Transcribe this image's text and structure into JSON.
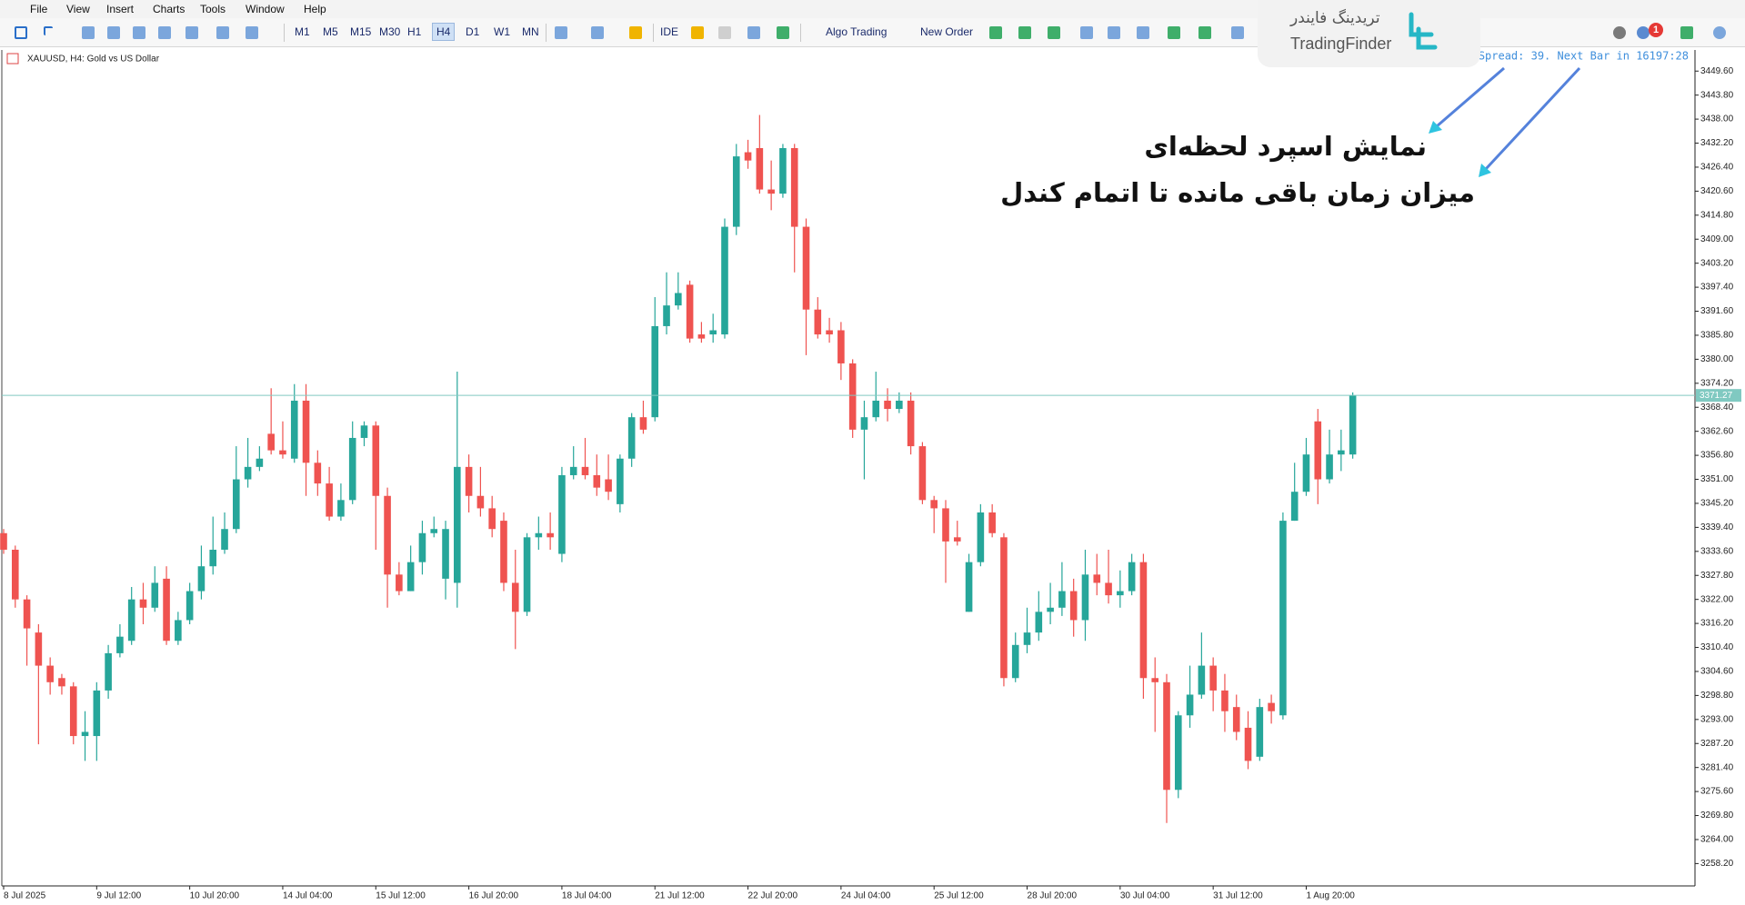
{
  "menu": [
    "File",
    "View",
    "Insert",
    "Charts",
    "Tools",
    "Window",
    "Help"
  ],
  "toolbar": {
    "timeframes": [
      "M1",
      "M5",
      "M15",
      "M30",
      "H1",
      "H4",
      "D1",
      "W1",
      "MN"
    ],
    "active": "H4",
    "buttons": [
      "IDE",
      "Algo Trading",
      "New Order"
    ],
    "notification_count": 1
  },
  "watermark": {
    "persian": "تریدینگ فایندر",
    "latin": "TradingFinder"
  },
  "annotations": [
    "نمایش اسپرد لحظه‌ای",
    "میزان زمان باقی مانده تا اتمام کندل"
  ],
  "chart_data": {
    "type": "candlestick",
    "title": "XAUUSD, H4:  Gold vs US Dollar",
    "info": "Spread: 39. Next Bar in 16197:28",
    "up_color": "#26a69a",
    "down_color": "#ef5350",
    "price_line_color": "#80c9c1",
    "grid": false,
    "categories": [
      "8 Jul 2025",
      null,
      null,
      null,
      null,
      null,
      null,
      null,
      "9 Jul 12:00",
      null,
      null,
      null,
      null,
      null,
      null,
      null,
      "10 Jul 20:00",
      null,
      null,
      null,
      null,
      null,
      null,
      null,
      "14 Jul 04:00",
      null,
      null,
      null,
      null,
      null,
      null,
      null,
      "15 Jul 12:00",
      null,
      null,
      null,
      null,
      null,
      null,
      null,
      "16 Jul 20:00",
      null,
      null,
      null,
      null,
      null,
      null,
      null,
      "18 Jul 04:00",
      null,
      null,
      null,
      null,
      null,
      null,
      null,
      "21 Jul 12:00",
      null,
      null,
      null,
      null,
      null,
      null,
      null,
      "22 Jul 20:00",
      null,
      null,
      null,
      null,
      null,
      null,
      null,
      "24 Jul 04:00",
      null,
      null,
      null,
      null,
      null,
      null,
      null,
      "25 Jul 12:00",
      null,
      null,
      null,
      null,
      null,
      null,
      null,
      "28 Jul 20:00",
      null,
      null,
      null,
      null,
      null,
      null,
      null,
      "30 Jul 04:00",
      null,
      null,
      null,
      null,
      null,
      null,
      null,
      "31 Jul 12:00",
      null,
      null,
      null,
      null,
      null,
      null,
      null,
      "1 Aug 20:00",
      null,
      null,
      null,
      null
    ],
    "open": [
      3338,
      3334,
      3322,
      3314,
      3306,
      3303,
      3301,
      3289,
      3289,
      3300,
      3309,
      3312,
      3322,
      3320,
      3327,
      3312,
      3317,
      3324,
      3330,
      3334,
      3339,
      3351,
      3354,
      3362,
      3358,
      3356,
      3370,
      3355,
      3350,
      3342,
      3346,
      3361,
      3364,
      3347,
      3328,
      3324,
      3331,
      3338,
      3327,
      3326,
      3354,
      3347,
      3344,
      3341,
      3326,
      3319,
      3337,
      3338,
      3333,
      3352,
      3354,
      3352,
      3351,
      3345,
      3356,
      3366,
      3366,
      3388,
      3393,
      3398,
      3386,
      3386,
      3386,
      3412,
      3430,
      3431,
      3421,
      3420,
      3431,
      3412,
      3392,
      3387,
      3387,
      3379,
      3363,
      3366,
      3370,
      3368,
      3370,
      3359,
      3346,
      3344,
      3337,
      3319,
      3331,
      3343,
      3337,
      3303,
      3311,
      3314,
      3319,
      3320,
      3324,
      3317,
      3328,
      3326,
      3323,
      3324,
      3331,
      3303,
      3302,
      3276,
      3294,
      3299,
      3306,
      3300,
      3296,
      3291,
      3284,
      3297,
      3294,
      3341,
      3348,
      3365,
      3351,
      3357,
      3357
    ],
    "high": [
      3339,
      3335,
      3323,
      3316,
      3308,
      3304,
      3302,
      3295,
      3302,
      3311,
      3316,
      3325,
      3326,
      3330,
      3330,
      3319,
      3326,
      3335,
      3342,
      3343,
      3359,
      3361,
      3359,
      3373,
      3365,
      3374,
      3374,
      3358,
      3354,
      3350,
      3365,
      3365,
      3365,
      3349,
      3331,
      3335,
      3341,
      3342,
      3341,
      3377,
      3357,
      3354,
      3347,
      3343,
      3334,
      3338,
      3342,
      3343,
      3354,
      3359,
      3361,
      3357,
      3357,
      3357,
      3367,
      3370,
      3395,
      3401,
      3401,
      3399,
      3389,
      3391,
      3414,
      3432,
      3433,
      3439,
      3428,
      3432,
      3432,
      3414,
      3395,
      3390,
      3389,
      3380,
      3370,
      3377,
      3373,
      3372,
      3372,
      3360,
      3347,
      3346,
      3341,
      3333,
      3345,
      3345,
      3338,
      3314,
      3320,
      3324,
      3326,
      3331,
      3327,
      3334,
      3333,
      3334,
      3329,
      3333,
      3333,
      3308,
      3304,
      3295,
      3306,
      3314,
      3308,
      3304,
      3299,
      3295,
      3298,
      3299,
      3343,
      3355,
      3361,
      3368,
      3363,
      3363,
      3372
    ],
    "low": [
      3333,
      3320,
      3306,
      3287,
      3299,
      3299,
      3287,
      3283,
      3283,
      3298,
      3308,
      3311,
      3316,
      3319,
      3311,
      3311,
      3316,
      3322,
      3328,
      3333,
      3338,
      3349,
      3353,
      3357,
      3356,
      3355,
      3347,
      3347,
      3341,
      3341,
      3345,
      3359,
      3334,
      3320,
      3323,
      3324,
      3328,
      3337,
      3322,
      3320,
      3343,
      3342,
      3337,
      3324,
      3310,
      3318,
      3334,
      3334,
      3331,
      3351,
      3351,
      3347,
      3346,
      3343,
      3354,
      3362,
      3365,
      3386,
      3392,
      3384,
      3384,
      3384,
      3385,
      3410,
      3426,
      3420,
      3416,
      3419,
      3401,
      3381,
      3385,
      3384,
      3375,
      3361,
      3351,
      3365,
      3365,
      3367,
      3357,
      3345,
      3338,
      3326,
      3335,
      3319,
      3330,
      3337,
      3301,
      3302,
      3309,
      3312,
      3316,
      3318,
      3313,
      3312,
      3323,
      3321,
      3320,
      3323,
      3298,
      3290,
      3268,
      3274,
      3291,
      3298,
      3295,
      3290,
      3288,
      3281,
      3283,
      3292,
      3293,
      3341,
      3347,
      3345,
      3350,
      3353,
      3356
    ],
    "close": [
      3334,
      3322,
      3315,
      3306,
      3302,
      3301,
      3289,
      3290,
      3300,
      3309,
      3313,
      3322,
      3320,
      3326,
      3312,
      3317,
      3324,
      3330,
      3334,
      3339,
      3351,
      3354,
      3356,
      3358,
      3357,
      3370,
      3355,
      3350,
      3342,
      3346,
      3361,
      3364,
      3347,
      3328,
      3324,
      3331,
      3338,
      3339,
      3339,
      3354,
      3347,
      3344,
      3339,
      3326,
      3319,
      3337,
      3338,
      3337,
      3352,
      3354,
      3352,
      3349,
      3348,
      3356,
      3366,
      3363,
      3388,
      3393,
      3396,
      3385,
      3385,
      3387,
      3412,
      3429,
      3428,
      3421,
      3420,
      3431,
      3412,
      3392,
      3386,
      3386,
      3379,
      3363,
      3366,
      3370,
      3368,
      3370,
      3359,
      3346,
      3344,
      3336,
      3336,
      3331,
      3343,
      3338,
      3303,
      3311,
      3314,
      3319,
      3320,
      3324,
      3317,
      3328,
      3326,
      3323,
      3324,
      3331,
      3303,
      3302,
      3276,
      3294,
      3299,
      3306,
      3300,
      3295,
      3290,
      3283,
      3296,
      3295,
      3341,
      3348,
      3357,
      3351,
      3357,
      3358,
      3371.27
    ],
    "ylim": [
      3252.8,
      3454.7
    ],
    "yticks": [
      {
        "value": 3449.6,
        "label": "3449.60"
      },
      {
        "value": 3443.8,
        "label": "3443.80"
      },
      {
        "value": 3438,
        "label": "3438.00"
      },
      {
        "value": 3432.2,
        "label": "3432.20"
      },
      {
        "value": 3426.4,
        "label": "3426.40"
      },
      {
        "value": 3420.6,
        "label": "3420.60"
      },
      {
        "value": 3414.8,
        "label": "3414.80"
      },
      {
        "value": 3409,
        "label": "3409.00"
      },
      {
        "value": 3403.2,
        "label": "3403.20"
      },
      {
        "value": 3397.4,
        "label": "3397.40"
      },
      {
        "value": 3391.6,
        "label": "3391.60"
      },
      {
        "value": 3385.8,
        "label": "3385.80"
      },
      {
        "value": 3380,
        "label": "3380.00"
      },
      {
        "value": 3374.2,
        "label": "3374.20"
      },
      {
        "value": 3368.4,
        "label": "3368.40"
      },
      {
        "value": 3362.6,
        "label": "3362.60"
      },
      {
        "value": 3356.8,
        "label": "3356.80"
      },
      {
        "value": 3351,
        "label": "3351.00"
      },
      {
        "value": 3345.2,
        "label": "3345.20"
      },
      {
        "value": 3339.4,
        "label": "3339.40"
      },
      {
        "value": 3333.6,
        "label": "3333.60"
      },
      {
        "value": 3327.8,
        "label": "3327.80"
      },
      {
        "value": 3322,
        "label": "3322.00"
      },
      {
        "value": 3316.2,
        "label": "3316.20"
      },
      {
        "value": 3310.4,
        "label": "3310.40"
      },
      {
        "value": 3304.6,
        "label": "3304.60"
      },
      {
        "value": 3298.8,
        "label": "3298.80"
      },
      {
        "value": 3293,
        "label": "3293.00"
      },
      {
        "value": 3287.2,
        "label": "3287.20"
      },
      {
        "value": 3281.4,
        "label": "3281.40"
      },
      {
        "value": 3275.6,
        "label": "3275.60"
      },
      {
        "value": 3269.8,
        "label": "3269.80"
      },
      {
        "value": 3264,
        "label": "3264.00"
      },
      {
        "value": 3258.2,
        "label": "3258.20"
      }
    ]
  }
}
